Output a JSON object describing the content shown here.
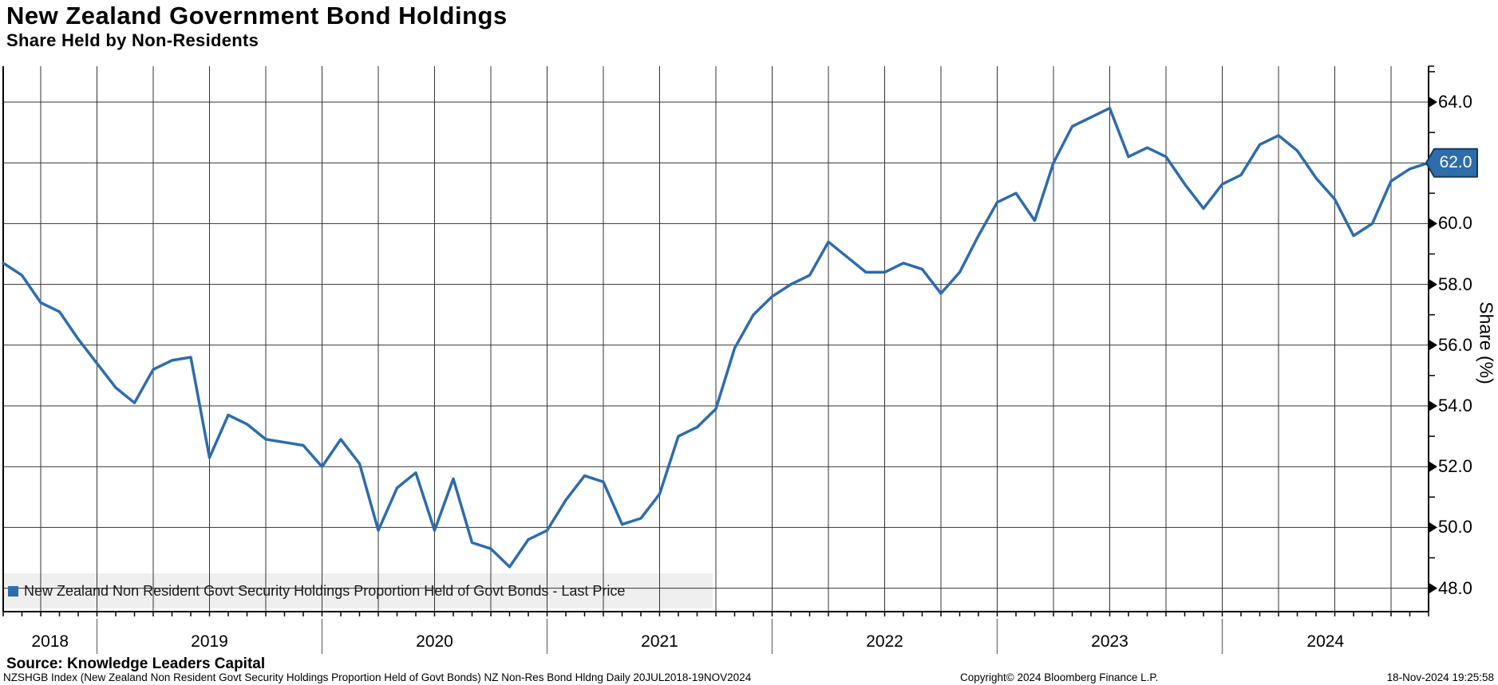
{
  "header": {
    "title": "New Zealand Government Bond Holdings",
    "subtitle": "Share Held by Non-Residents"
  },
  "legend": {
    "marker_color": "#2e6cab",
    "label": "New Zealand Non Resident Govt Security Holdings Proportion Held of Govt Bonds - Last Price"
  },
  "last_price": {
    "value": "62.0",
    "box_color": "#2e6cab",
    "box_border_color": "#123a63",
    "text_color": "#ffffff"
  },
  "colors": {
    "line": "#2e6cab",
    "gridline": "#333333",
    "spine": "#000000",
    "year_tick": "#808080",
    "legend_band": "#efefef",
    "text": "#000000"
  },
  "y_axis": {
    "title": "Share (%)",
    "tick_format_decimals": 1
  },
  "footer": {
    "source": "Source: Knowledge Leaders Capital",
    "left": "NZSHGB Index (New Zealand Non Resident Govt Security Holdings Proportion Held of Govt Bonds) NZ Non-Res Bond Hldng  Daily 20JUL2018-19NOV2024",
    "copyright": "Copyright© 2024 Bloomberg Finance L.P.",
    "timestamp": "18-Nov-2024 19:25:58"
  },
  "chart_data": {
    "type": "line",
    "title": "New Zealand Government Bond Holdings",
    "subtitle": "Share Held by Non-Residents",
    "series_name": "New Zealand Non Resident Govt Security Holdings Proportion Held of Govt Bonds - Last Price",
    "xlabel": "",
    "ylabel": "Share (%)",
    "ylim": [
      47.2,
      65.2
    ],
    "grid": true,
    "legend_position": "bottom-left",
    "last_price": 62.0,
    "x": [
      "2018-07",
      "2018-08",
      "2018-09",
      "2018-10",
      "2018-11",
      "2018-12",
      "2019-01",
      "2019-02",
      "2019-03",
      "2019-04",
      "2019-05",
      "2019-06",
      "2019-07",
      "2019-08",
      "2019-09",
      "2019-10",
      "2019-11",
      "2019-12",
      "2020-01",
      "2020-02",
      "2020-03",
      "2020-04",
      "2020-05",
      "2020-06",
      "2020-07",
      "2020-08",
      "2020-09",
      "2020-10",
      "2020-11",
      "2020-12",
      "2021-01",
      "2021-02",
      "2021-03",
      "2021-04",
      "2021-05",
      "2021-06",
      "2021-07",
      "2021-08",
      "2021-09",
      "2021-10",
      "2021-11",
      "2021-12",
      "2022-01",
      "2022-02",
      "2022-03",
      "2022-04",
      "2022-05",
      "2022-06",
      "2022-07",
      "2022-08",
      "2022-09",
      "2022-10",
      "2022-11",
      "2022-12",
      "2023-01",
      "2023-02",
      "2023-03",
      "2023-04",
      "2023-05",
      "2023-06",
      "2023-07",
      "2023-08",
      "2023-09",
      "2023-10",
      "2023-11",
      "2023-12",
      "2024-01",
      "2024-02",
      "2024-03",
      "2024-04",
      "2024-05",
      "2024-06",
      "2024-07",
      "2024-08",
      "2024-09",
      "2024-10",
      "2024-11"
    ],
    "values": [
      58.7,
      58.3,
      57.4,
      57.1,
      56.2,
      55.4,
      54.6,
      54.1,
      55.2,
      55.5,
      55.6,
      52.3,
      53.7,
      53.4,
      52.9,
      52.8,
      52.7,
      52.0,
      52.9,
      52.1,
      49.9,
      51.3,
      51.8,
      49.9,
      51.6,
      49.5,
      49.3,
      48.7,
      49.6,
      49.9,
      50.9,
      51.7,
      51.5,
      50.1,
      50.3,
      51.1,
      53.0,
      53.3,
      53.9,
      55.9,
      57.0,
      57.6,
      58.0,
      58.3,
      59.4,
      58.9,
      58.4,
      58.4,
      58.7,
      58.5,
      57.7,
      58.4,
      59.6,
      60.7,
      61.0,
      60.1,
      62.0,
      63.2,
      63.5,
      63.8,
      62.2,
      62.5,
      62.2,
      61.3,
      60.5,
      61.3,
      61.6,
      62.6,
      62.9,
      62.4,
      61.5,
      60.8,
      59.6,
      60.0,
      61.4,
      61.8,
      62.0
    ],
    "y_ticks_major": [
      48,
      50,
      52,
      54,
      56,
      58,
      60,
      62,
      64
    ],
    "y_ticks_minor": [
      49,
      51,
      53,
      55,
      57,
      59,
      61,
      63,
      65
    ],
    "quarter_gridline_first_index": 2,
    "quarter_gridline_step": 3,
    "year_boundary_indices": [
      5,
      17,
      29,
      41,
      53,
      65
    ],
    "year_labels": [
      "2018",
      "2019",
      "2020",
      "2021",
      "2022",
      "2023",
      "2024"
    ]
  }
}
